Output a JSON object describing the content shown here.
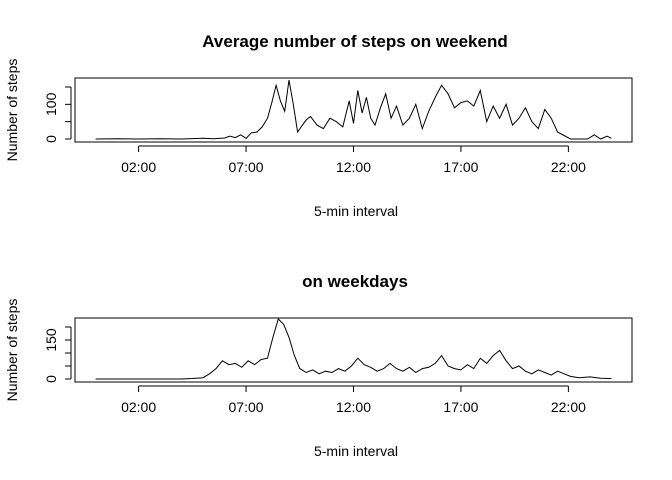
{
  "chart_data": [
    {
      "type": "line",
      "title": "Average number of steps on weekend",
      "xlabel": "5-min interval",
      "ylabel": "Number of steps",
      "xlim": [
        -0.96,
        24.96
      ],
      "ylim": [
        0,
        170
      ],
      "x_ticks": [
        2,
        7,
        12,
        17,
        22
      ],
      "x_tick_labels": [
        "02:00",
        "07:00",
        "12:00",
        "17:00",
        "22:00"
      ],
      "y_ticks": [
        0,
        50,
        100,
        150
      ],
      "y_tick_labels": [
        "0",
        "100"
      ],
      "grid": false,
      "legend": "none",
      "color": "#000000",
      "x": [
        0,
        1,
        2,
        3,
        4,
        5,
        5.5,
        6,
        6.25,
        6.5,
        6.75,
        7,
        7.25,
        7.5,
        7.75,
        8,
        8.2,
        8.4,
        8.6,
        8.8,
        9,
        9.2,
        9.4,
        9.6,
        9.8,
        10,
        10.3,
        10.6,
        10.9,
        11.2,
        11.5,
        11.8,
        12,
        12.2,
        12.4,
        12.6,
        12.8,
        13,
        13.25,
        13.5,
        13.75,
        14,
        14.3,
        14.6,
        14.9,
        15.2,
        15.5,
        15.8,
        16.1,
        16.4,
        16.7,
        17,
        17.3,
        17.6,
        17.9,
        18.2,
        18.5,
        18.8,
        19.1,
        19.4,
        19.7,
        20,
        20.3,
        20.6,
        20.9,
        21.2,
        21.5,
        21.8,
        22.1,
        22.5,
        22.9,
        23.2,
        23.5,
        23.8,
        24
      ],
      "y": [
        0,
        1,
        0,
        1,
        0,
        2,
        1,
        3,
        8,
        4,
        12,
        2,
        18,
        20,
        35,
        60,
        105,
        155,
        110,
        80,
        170,
        100,
        20,
        38,
        55,
        65,
        40,
        30,
        60,
        50,
        35,
        110,
        45,
        140,
        75,
        120,
        60,
        40,
        90,
        130,
        60,
        95,
        40,
        60,
        100,
        30,
        80,
        120,
        155,
        130,
        90,
        105,
        110,
        95,
        140,
        50,
        95,
        60,
        100,
        40,
        60,
        90,
        50,
        30,
        85,
        60,
        20,
        10,
        0,
        0,
        0,
        12,
        0,
        8,
        2
      ]
    },
    {
      "type": "line",
      "title": "on weekdays",
      "xlabel": "5-min interval",
      "ylabel": "Number of steps",
      "xlim": [
        -0.96,
        24.96
      ],
      "ylim": [
        0,
        240
      ],
      "x_ticks": [
        2,
        7,
        12,
        17,
        22
      ],
      "x_tick_labels": [
        "02:00",
        "07:00",
        "12:00",
        "17:00",
        "22:00"
      ],
      "y_ticks": [
        0,
        50,
        100,
        150,
        200
      ],
      "y_tick_labels": [
        "0",
        "150"
      ],
      "grid": false,
      "legend": "none",
      "color": "#000000",
      "x": [
        0,
        1,
        2,
        3,
        4,
        4.5,
        5,
        5.3,
        5.6,
        5.9,
        6.2,
        6.5,
        6.8,
        7.1,
        7.4,
        7.7,
        8,
        8.25,
        8.5,
        8.75,
        9,
        9.25,
        9.5,
        9.8,
        10.1,
        10.4,
        10.7,
        11,
        11.3,
        11.6,
        11.9,
        12.2,
        12.5,
        12.8,
        13.1,
        13.4,
        13.7,
        14,
        14.3,
        14.6,
        14.9,
        15.2,
        15.5,
        15.8,
        16.1,
        16.4,
        16.7,
        17,
        17.3,
        17.6,
        17.9,
        18.2,
        18.5,
        18.8,
        19.1,
        19.4,
        19.7,
        20,
        20.3,
        20.6,
        20.9,
        21.2,
        21.5,
        21.8,
        22.1,
        22.5,
        23,
        23.5,
        24
      ],
      "y": [
        0,
        0,
        0,
        0,
        0,
        2,
        5,
        20,
        40,
        70,
        55,
        60,
        45,
        70,
        55,
        75,
        80,
        160,
        235,
        210,
        160,
        90,
        40,
        25,
        35,
        20,
        30,
        25,
        40,
        30,
        50,
        80,
        55,
        45,
        30,
        40,
        60,
        40,
        30,
        45,
        25,
        40,
        45,
        60,
        90,
        50,
        40,
        35,
        55,
        40,
        80,
        60,
        90,
        110,
        70,
        40,
        50,
        30,
        20,
        35,
        25,
        15,
        30,
        20,
        10,
        5,
        8,
        3,
        2
      ]
    }
  ]
}
